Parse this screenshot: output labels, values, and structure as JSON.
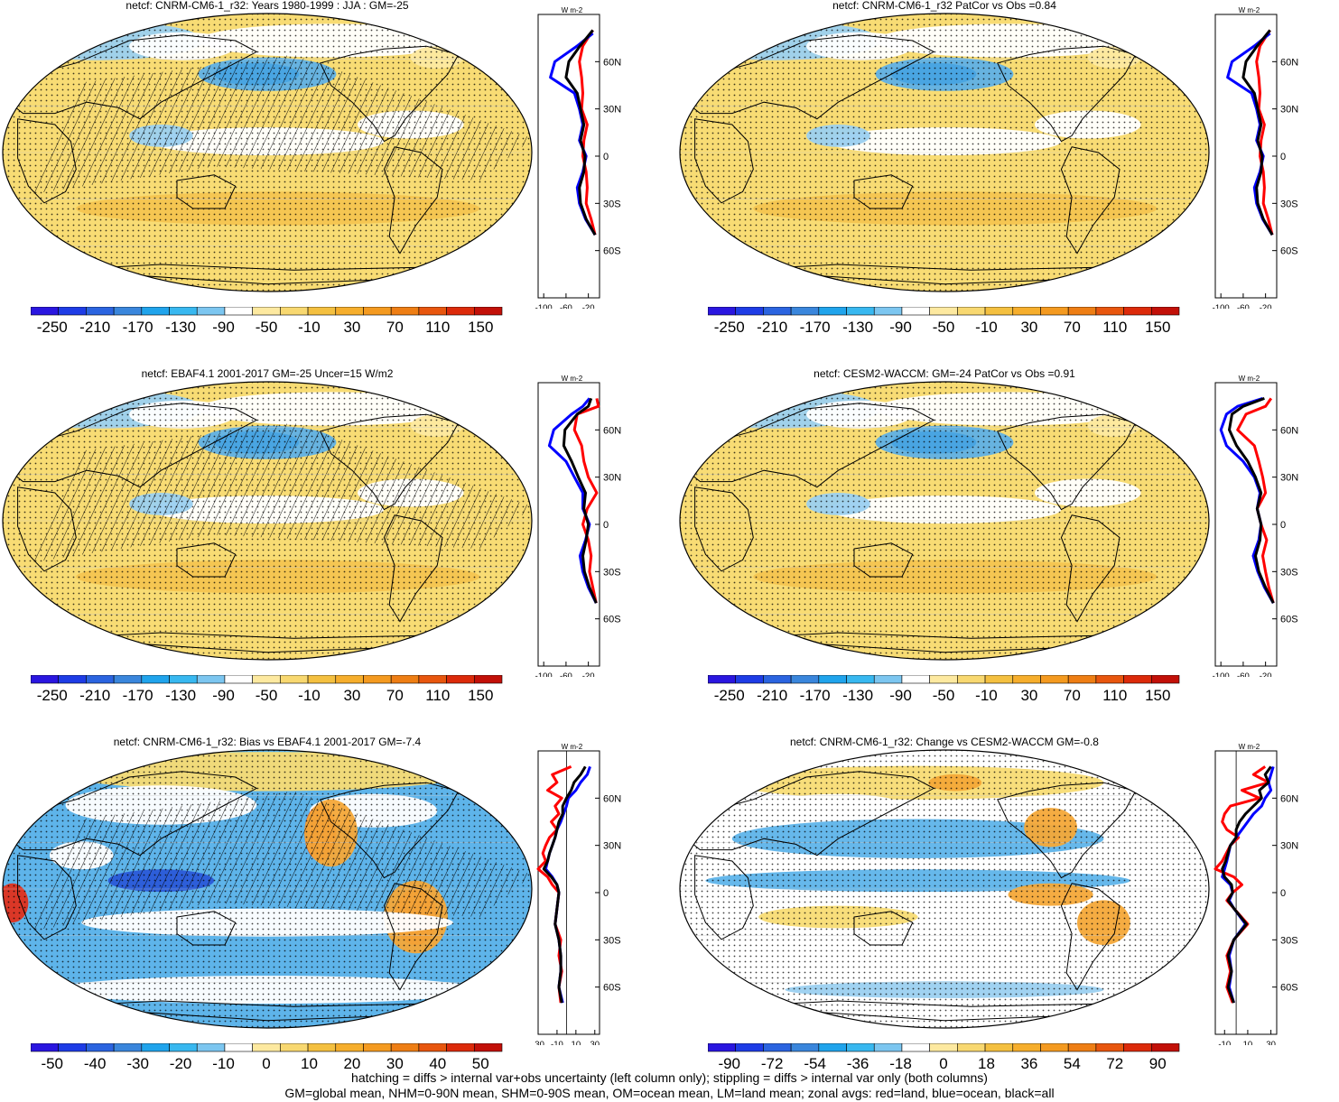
{
  "colors": {
    "yellow": "#f8dc70",
    "light_yellow": "#fbe9a0",
    "orange": "#f4a838",
    "red": "#e0301c",
    "light_blue": "#9bd0f0",
    "blue": "#48a8e4",
    "deep_blue": "#2a5ad8",
    "land_line": "#000000"
  },
  "footer": {
    "line1": "hatching = diffs > internal var+obs uncertainty (left column only); stippling = diffs > internal var only (both columns)",
    "line2": "GM=global mean, NHM=0-90N mean, SHM=0-90S mean, OM=ocean mean, LM=land mean; zonal avgs: red=land, blue=ocean, black=all"
  },
  "chart_data": [
    {
      "type": "heatmap",
      "title": "netcf: CNRM-CM6-1_r32: Years 1980-1999 : JJA : GM=-25",
      "field": "base",
      "hatched": true,
      "colorbar": {
        "labels": [
          "-250",
          "-210",
          "-170",
          "-130",
          "-90",
          "-50",
          "-10",
          "30",
          "70",
          "110",
          "150"
        ],
        "palette": "full"
      },
      "zonal": {
        "units": "W m-2",
        "ylabels": [
          "60N",
          "30N",
          "0",
          "30S",
          "60S"
        ],
        "xlabels": [
          "-100",
          "-60",
          "-20"
        ],
        "xlim": [
          -110,
          0
        ],
        "series": [
          {
            "name": "land",
            "color": "red",
            "lat": [
              80,
              70,
              60,
              50,
              40,
              30,
              20,
              10,
              0,
              -10,
              -20,
              -30,
              -40,
              -50
            ],
            "values": [
              -12,
              -30,
              -36,
              -32,
              -30,
              -32,
              -22,
              -28,
              -30,
              -24,
              -22,
              -24,
              -15,
              -8
            ]
          },
          {
            "name": "ocean",
            "color": "blue",
            "lat": [
              78,
              70,
              60,
              50,
              40,
              30,
              20,
              10,
              0,
              -10,
              -20,
              -30,
              -40,
              -50
            ],
            "values": [
              -12,
              -40,
              -80,
              -88,
              -45,
              -36,
              -30,
              -36,
              -24,
              -30,
              -40,
              -36,
              -25,
              -8
            ]
          },
          {
            "name": "all",
            "color": "black",
            "lat": [
              80,
              70,
              60,
              50,
              40,
              30,
              20,
              10,
              0,
              -10,
              -20,
              -30,
              -40,
              -50
            ],
            "values": [
              -12,
              -35,
              -55,
              -60,
              -40,
              -34,
              -28,
              -34,
              -26,
              -28,
              -36,
              -34,
              -24,
              -8
            ]
          }
        ]
      }
    },
    {
      "type": "heatmap",
      "title": "netcf: CNRM-CM6-1_r32 PatCor vs Obs =0.84",
      "field": "base",
      "hatched": false,
      "colorbar": {
        "labels": [
          "-250",
          "-210",
          "-170",
          "-130",
          "-90",
          "-50",
          "-10",
          "30",
          "70",
          "110",
          "150"
        ],
        "palette": "full"
      },
      "zonal": {
        "units": "W m-2",
        "ylabels": [
          "60N",
          "30N",
          "0",
          "30S",
          "60S"
        ],
        "xlabels": [
          "-100",
          "-60",
          "-20"
        ],
        "xlim": [
          -110,
          0
        ],
        "series": [
          {
            "name": "land",
            "color": "red",
            "lat": [
              80,
              70,
              60,
              50,
              40,
              30,
              20,
              10,
              0,
              -10,
              -20,
              -30,
              -40,
              -50
            ],
            "values": [
              -12,
              -30,
              -36,
              -32,
              -30,
              -32,
              -22,
              -28,
              -30,
              -24,
              -22,
              -24,
              -15,
              -8
            ]
          },
          {
            "name": "ocean",
            "color": "blue",
            "lat": [
              78,
              70,
              60,
              50,
              40,
              30,
              20,
              10,
              0,
              -10,
              -20,
              -30,
              -40,
              -50
            ],
            "values": [
              -12,
              -40,
              -80,
              -88,
              -45,
              -36,
              -30,
              -36,
              -24,
              -30,
              -40,
              -36,
              -25,
              -8
            ]
          },
          {
            "name": "all",
            "color": "black",
            "lat": [
              80,
              70,
              60,
              50,
              40,
              30,
              20,
              10,
              0,
              -10,
              -20,
              -30,
              -40,
              -50
            ],
            "values": [
              -12,
              -35,
              -55,
              -60,
              -40,
              -34,
              -28,
              -34,
              -26,
              -28,
              -36,
              -34,
              -24,
              -8
            ]
          }
        ]
      }
    },
    {
      "type": "heatmap",
      "title": "netcf: EBAF4.1 2001-2017 GM=-25 Uncer=15 W/m2",
      "field": "base",
      "hatched": true,
      "colorbar": {
        "labels": [
          "-250",
          "-210",
          "-170",
          "-130",
          "-90",
          "-50",
          "-10",
          "30",
          "70",
          "110",
          "150"
        ],
        "palette": "full"
      },
      "zonal": {
        "units": "W m-2",
        "ylabels": [
          "60N",
          "30N",
          "0",
          "30S",
          "60S"
        ],
        "xlabels": [
          "-100",
          "-60",
          "-20"
        ],
        "xlim": [
          -110,
          0
        ],
        "series": [
          {
            "name": "land",
            "color": "red",
            "lat": [
              80,
              75,
              70,
              60,
              50,
              40,
              30,
              20,
              10,
              0,
              -10,
              -20,
              -30,
              -40,
              -50
            ],
            "values": [
              -5,
              -2,
              -40,
              -45,
              -32,
              -28,
              -20,
              -5,
              -22,
              -30,
              -20,
              -15,
              -18,
              -12,
              -6
            ]
          },
          {
            "name": "ocean",
            "color": "blue",
            "lat": [
              80,
              75,
              70,
              60,
              50,
              40,
              30,
              20,
              10,
              0,
              -10,
              -20,
              -30,
              -40,
              -50
            ],
            "values": [
              -18,
              -30,
              -50,
              -82,
              -90,
              -60,
              -45,
              -30,
              -30,
              -18,
              -25,
              -35,
              -30,
              -20,
              -6
            ]
          },
          {
            "name": "all",
            "color": "black",
            "lat": [
              80,
              75,
              70,
              60,
              50,
              40,
              30,
              20,
              10,
              0,
              -10,
              -20,
              -30,
              -40,
              -50
            ],
            "values": [
              -15,
              -20,
              -40,
              -62,
              -64,
              -50,
              -38,
              -25,
              -28,
              -20,
              -24,
              -30,
              -27,
              -18,
              -6
            ]
          }
        ]
      }
    },
    {
      "type": "heatmap",
      "title": "netcf: CESM2-WACCM: GM=-24 PatCor vs Obs =0.91",
      "field": "base",
      "hatched": false,
      "colorbar": {
        "labels": [
          "-250",
          "-210",
          "-170",
          "-130",
          "-90",
          "-50",
          "-10",
          "30",
          "70",
          "110",
          "150"
        ],
        "palette": "full"
      },
      "zonal": {
        "units": "W m-2",
        "ylabels": [
          "60N",
          "30N",
          "0",
          "30S",
          "60S"
        ],
        "xlabels": [
          "-100",
          "-60",
          "-20"
        ],
        "xlim": [
          -110,
          0
        ],
        "series": [
          {
            "name": "land",
            "color": "red",
            "lat": [
              80,
              75,
              70,
              60,
              50,
              40,
              30,
              20,
              10,
              0,
              -10,
              -20,
              -30,
              -40,
              -50
            ],
            "values": [
              -10,
              -20,
              -55,
              -70,
              -40,
              -32,
              -25,
              -20,
              -35,
              -28,
              -18,
              -25,
              -20,
              -14,
              -6
            ]
          },
          {
            "name": "ocean",
            "color": "blue",
            "lat": [
              80,
              75,
              70,
              60,
              50,
              40,
              30,
              20,
              10,
              0,
              -10,
              -20,
              -30,
              -40,
              -50
            ],
            "values": [
              -25,
              -70,
              -90,
              -100,
              -90,
              -60,
              -40,
              -30,
              -35,
              -28,
              -32,
              -42,
              -34,
              -22,
              -6
            ]
          },
          {
            "name": "all",
            "color": "black",
            "lat": [
              80,
              75,
              70,
              60,
              50,
              40,
              30,
              20,
              10,
              0,
              -10,
              -20,
              -30,
              -40,
              -50
            ],
            "values": [
              -22,
              -60,
              -80,
              -85,
              -72,
              -52,
              -38,
              -28,
              -35,
              -28,
              -30,
              -38,
              -32,
              -20,
              -6
            ]
          }
        ]
      }
    },
    {
      "type": "heatmap",
      "title": "netcf: CNRM-CM6-1_r32: Bias vs EBAF4.1 2001-2017 GM=-7.4",
      "field": "bias",
      "hatched": true,
      "colorbar": {
        "labels": [
          "-50",
          "-40",
          "-30",
          "-20",
          "-10",
          "0",
          "10",
          "20",
          "30",
          "40",
          "50"
        ],
        "palette": "full"
      },
      "zonal": {
        "units": "W m-2",
        "ylabels": [
          "60N",
          "30N",
          "0",
          "30S",
          "60S"
        ],
        "xlabels": [
          "-30",
          "-10",
          "10",
          "30"
        ],
        "xlim": [
          -30,
          35
        ],
        "zero_line": 0,
        "series": [
          {
            "name": "land",
            "color": "red",
            "lat": [
              80,
              75,
              70,
              65,
              60,
              55,
              50,
              45,
              40,
              35,
              30,
              25,
              20,
              15,
              10,
              5,
              0,
              -10,
              -20,
              -30,
              -40,
              -50,
              -60,
              -70
            ],
            "values": [
              5,
              -15,
              -10,
              -20,
              -5,
              -12,
              -8,
              -16,
              -10,
              -18,
              -22,
              -25,
              -22,
              -30,
              -20,
              -15,
              -8,
              -10,
              -12,
              -6,
              -8,
              -5,
              -8,
              -6
            ]
          },
          {
            "name": "ocean",
            "color": "blue",
            "lat": [
              80,
              75,
              70,
              65,
              60,
              55,
              50,
              45,
              40,
              35,
              30,
              25,
              20,
              15,
              10,
              5,
              0,
              -10,
              -20,
              -30,
              -40,
              -50,
              -60,
              -70
            ],
            "values": [
              25,
              22,
              15,
              10,
              2,
              0,
              -3,
              -6,
              -10,
              -12,
              -15,
              -18,
              -20,
              -22,
              -15,
              -10,
              -8,
              -10,
              -12,
              -8,
              -6,
              -6,
              -8,
              -4
            ]
          },
          {
            "name": "all",
            "color": "black",
            "lat": [
              80,
              75,
              70,
              65,
              60,
              55,
              50,
              45,
              40,
              35,
              30,
              25,
              20,
              15,
              10,
              5,
              0,
              -10,
              -20,
              -30,
              -40,
              -50,
              -60,
              -70
            ],
            "values": [
              20,
              15,
              8,
              5,
              0,
              -4,
              -4,
              -8,
              -10,
              -12,
              -15,
              -18,
              -20,
              -24,
              -16,
              -10,
              -8,
              -10,
              -12,
              -8,
              -6,
              -6,
              -8,
              -5
            ]
          }
        ]
      }
    },
    {
      "type": "heatmap",
      "title": "netcf: CNRM-CM6-1_r32: Change vs CESM2-WACCM GM=-0.8",
      "field": "change",
      "hatched": false,
      "colorbar": {
        "labels": [
          "-90",
          "-72",
          "-54",
          "-36",
          "-18",
          "0",
          "18",
          "36",
          "54",
          "72",
          "90"
        ],
        "palette": "full"
      },
      "zonal": {
        "units": "W m-2",
        "ylabels": [
          "60N",
          "30N",
          "0",
          "30S",
          "60S"
        ],
        "xlabels": [
          "-10",
          "10",
          "30"
        ],
        "xlim": [
          -18,
          35
        ],
        "zero_line": 0,
        "series": [
          {
            "name": "land",
            "color": "red",
            "lat": [
              80,
              75,
              70,
              65,
              60,
              55,
              50,
              45,
              40,
              35,
              30,
              20,
              15,
              10,
              5,
              0,
              -5,
              -10,
              -20,
              -30,
              -40,
              -50,
              -60,
              -70
            ],
            "values": [
              25,
              15,
              28,
              5,
              20,
              -5,
              -10,
              -12,
              -8,
              2,
              -5,
              -12,
              -18,
              -2,
              5,
              -3,
              -8,
              -2,
              10,
              -2,
              -8,
              -5,
              -8,
              -3
            ]
          },
          {
            "name": "ocean",
            "color": "blue",
            "lat": [
              80,
              75,
              70,
              65,
              60,
              55,
              50,
              45,
              40,
              35,
              30,
              20,
              15,
              10,
              5,
              0,
              -5,
              -10,
              -20,
              -30,
              -40,
              -50,
              -60,
              -70
            ],
            "values": [
              32,
              30,
              28,
              30,
              25,
              22,
              15,
              10,
              5,
              0,
              -5,
              -8,
              -10,
              -12,
              -5,
              -3,
              -6,
              -2,
              8,
              -2,
              -6,
              -4,
              -6,
              -2
            ]
          },
          {
            "name": "all",
            "color": "black",
            "lat": [
              80,
              75,
              70,
              65,
              60,
              55,
              50,
              45,
              40,
              35,
              30,
              20,
              15,
              10,
              5,
              0,
              -5,
              -10,
              -20,
              -30,
              -40,
              -50,
              -60,
              -70
            ],
            "values": [
              30,
              25,
              28,
              20,
              22,
              15,
              8,
              3,
              0,
              0,
              -5,
              -9,
              -12,
              -10,
              -4,
              -3,
              -7,
              -2,
              9,
              -2,
              -7,
              -4,
              -7,
              -2
            ]
          }
        ]
      }
    }
  ]
}
